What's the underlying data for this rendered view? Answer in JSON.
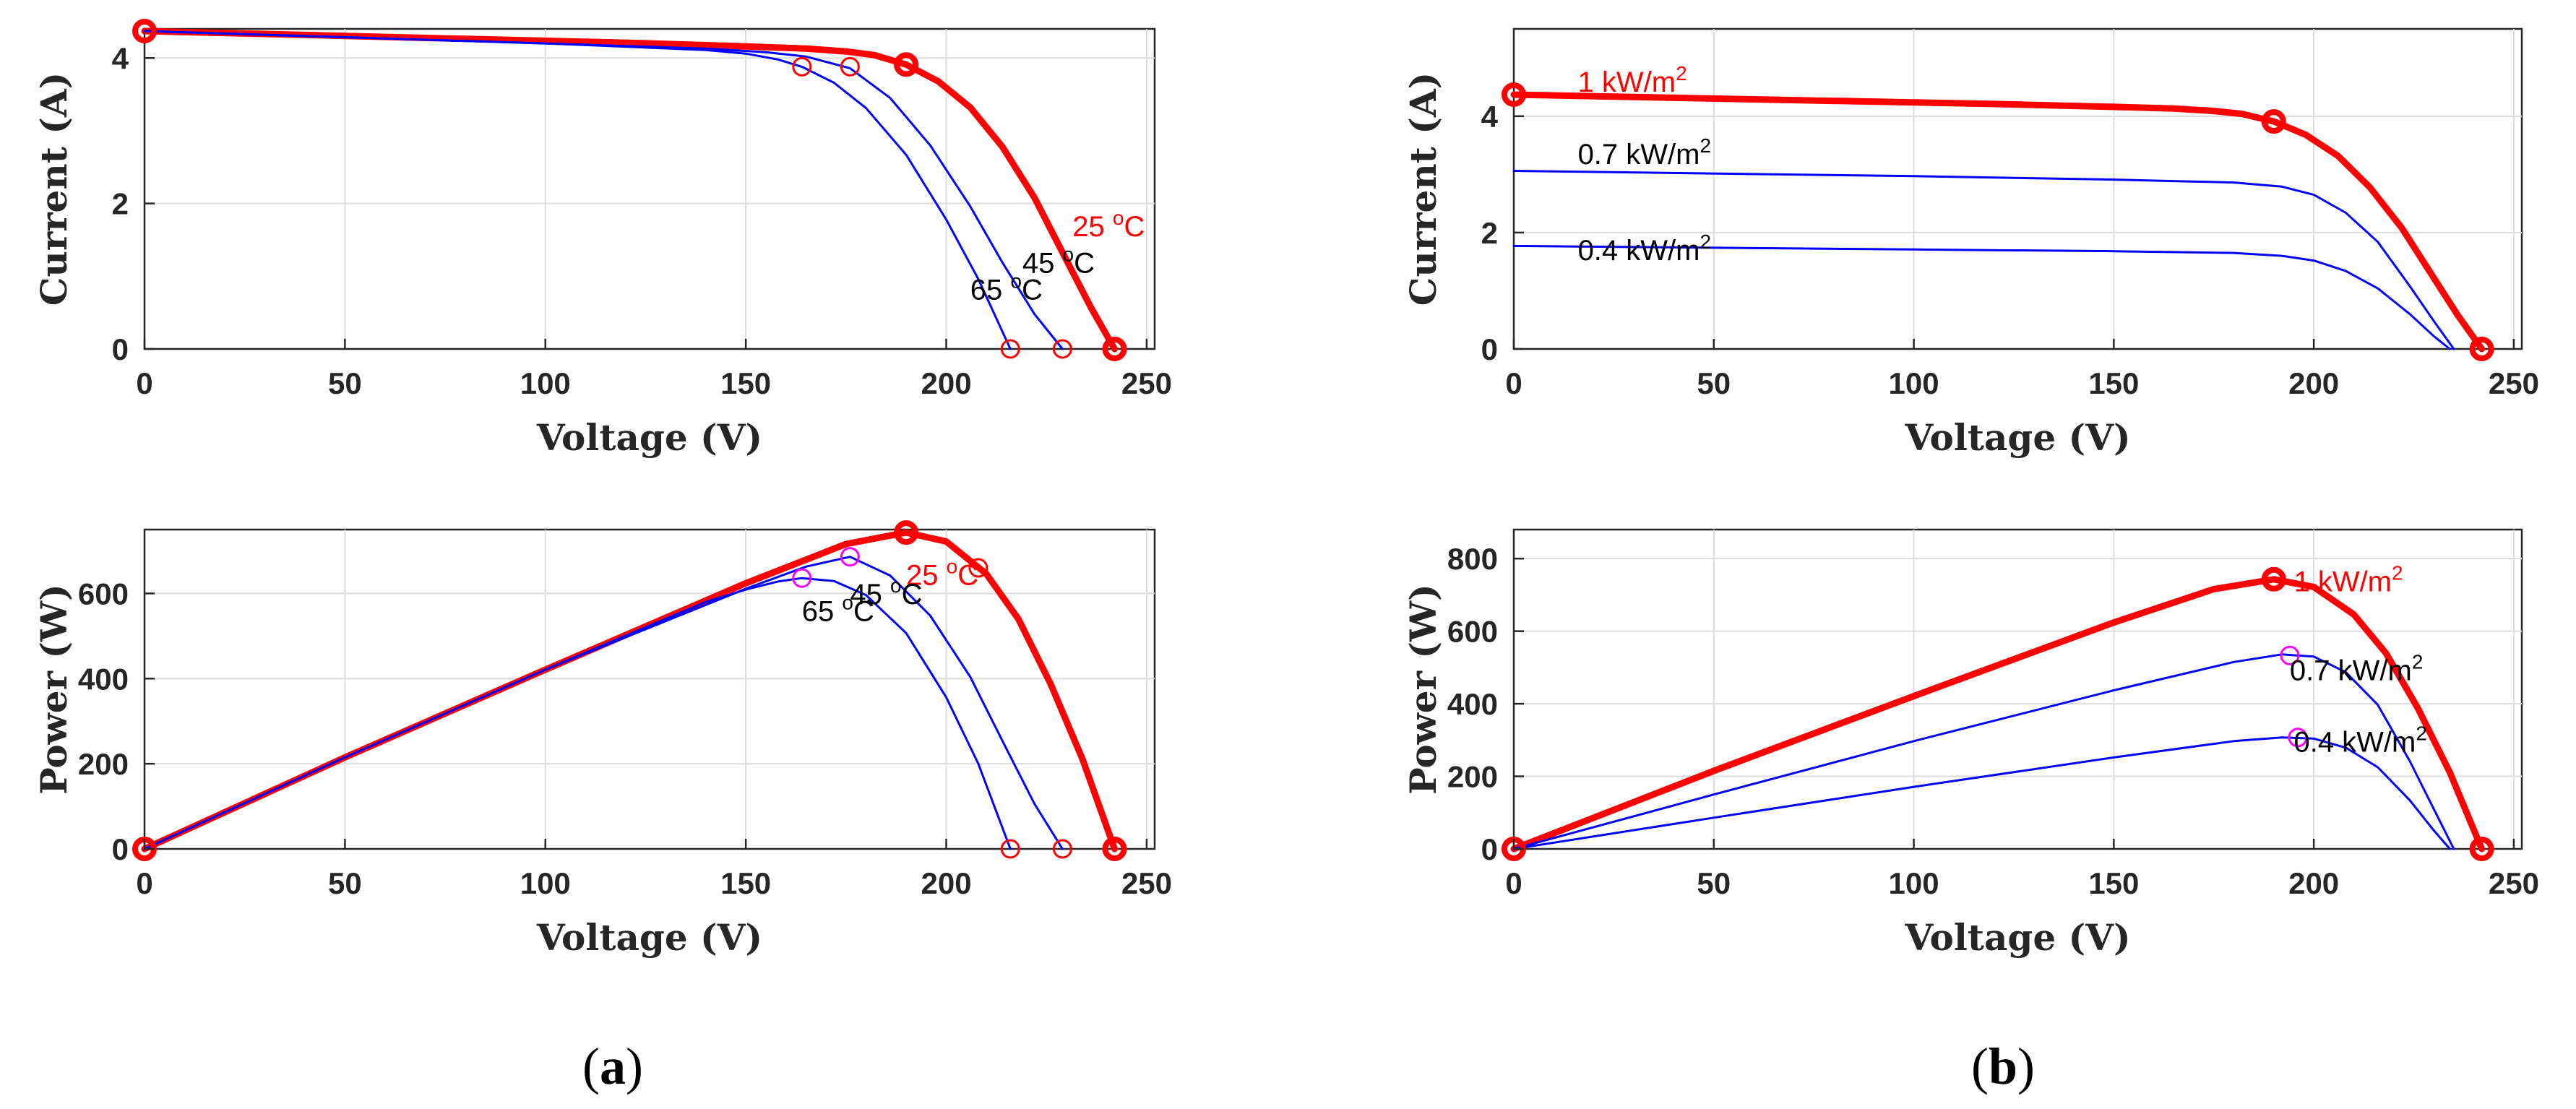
{
  "colors": {
    "thick": "#ff0000",
    "thin": "#0000ff",
    "mpp_magenta": "#ff00ff",
    "axis": "#262626",
    "grid": "#dcdcdc"
  },
  "panel_labels": {
    "a": "a",
    "b": "b"
  },
  "chart_data": [
    {
      "id": "a-iv",
      "type": "line",
      "panel": "a",
      "title": "",
      "xlabel": "Voltage (V)",
      "ylabel": "Current (A)",
      "xlim": [
        0,
        252
      ],
      "ylim": [
        0,
        4.4
      ],
      "xticks": [
        0,
        50,
        100,
        150,
        200,
        250
      ],
      "yticks": [
        0,
        2,
        4
      ],
      "grid": true,
      "series": [
        {
          "name": "25 °C",
          "label_main": "25 ",
          "label_sup": "o",
          "label_unit": "C",
          "color": "#ff0000",
          "width": 9,
          "label_color": "#ff0000",
          "label_at": [
            231.5,
            1.55
          ],
          "x": [
            0,
            60,
            120,
            150,
            165,
            175,
            182,
            190,
            198,
            206,
            214,
            222,
            230,
            236,
            242
          ],
          "y": [
            4.37,
            4.29,
            4.21,
            4.16,
            4.13,
            4.09,
            4.04,
            3.91,
            3.68,
            3.32,
            2.78,
            2.08,
            1.22,
            0.58,
            0.0
          ],
          "markers": [
            {
              "x": 0,
              "y": 4.37,
              "style": "bold"
            },
            {
              "x": 190,
              "y": 3.91,
              "style": "bold"
            },
            {
              "x": 242,
              "y": 0,
              "style": "bold"
            }
          ]
        },
        {
          "name": "45 °C",
          "label_main": "45 ",
          "label_sup": "o",
          "label_unit": "C",
          "color": "#0000ff",
          "width": 3,
          "label_color": "#000000",
          "label_at": [
            219,
            1.05
          ],
          "x": [
            0,
            100,
            140,
            155,
            165,
            176,
            186,
            196,
            206,
            214,
            222,
            229
          ],
          "y": [
            4.37,
            4.2,
            4.13,
            4.08,
            4.02,
            3.86,
            3.45,
            2.8,
            1.96,
            1.19,
            0.48,
            0.0
          ],
          "markers": [
            {
              "x": 176,
              "y": 3.88,
              "style": "thin"
            },
            {
              "x": 229,
              "y": 0,
              "style": "thin"
            }
          ]
        },
        {
          "name": "65 °C",
          "label_main": "65 ",
          "label_sup": "o",
          "label_unit": "C",
          "color": "#0000ff",
          "width": 3,
          "label_color": "#000000",
          "label_at": [
            206,
            0.68
          ],
          "x": [
            0,
            100,
            140,
            150,
            158,
            164,
            172,
            180,
            190,
            200,
            208,
            216
          ],
          "y": [
            4.37,
            4.2,
            4.11,
            4.06,
            3.98,
            3.88,
            3.66,
            3.31,
            2.67,
            1.78,
            0.96,
            0.0
          ],
          "markers": [
            {
              "x": 164,
              "y": 3.88,
              "style": "thin"
            },
            {
              "x": 216,
              "y": 0,
              "style": "thin"
            }
          ]
        }
      ]
    },
    {
      "id": "a-pv",
      "type": "line",
      "panel": "a",
      "title": "",
      "xlabel": "Voltage (V)",
      "ylabel": "Power (W)",
      "xlim": [
        0,
        252
      ],
      "ylim": [
        0,
        750
      ],
      "xticks": [
        0,
        50,
        100,
        150,
        200,
        250
      ],
      "yticks": [
        0,
        200,
        400,
        600
      ],
      "grid": true,
      "series": [
        {
          "name": "25 °C",
          "label_main": "25 ",
          "label_sup": "o",
          "label_unit": "C",
          "color": "#ff0000",
          "width": 9,
          "label_color": "#ff0000",
          "label_at": [
            190,
            620
          ],
          "x": [
            0,
            50,
            100,
            150,
            175,
            190,
            200,
            210,
            218,
            226,
            234,
            242
          ],
          "y": [
            0,
            215,
            421,
            624,
            716,
            743,
            722,
            646,
            540,
            388,
            211,
            0
          ],
          "markers": [
            {
              "x": 0,
              "y": 0,
              "style": "bold"
            },
            {
              "x": 190,
              "y": 743,
              "style": "bold"
            },
            {
              "x": 242,
              "y": 0,
              "style": "bold"
            },
            {
              "x": 208,
              "y": 660,
              "style": "thin"
            }
          ]
        },
        {
          "name": "45 °C",
          "label_main": "45 ",
          "label_sup": "o",
          "label_unit": "C",
          "color": "#0000ff",
          "width": 3,
          "label_color": "#000000",
          "label_at": [
            176,
            575
          ],
          "x": [
            0,
            50,
            100,
            150,
            165,
            176,
            186,
            196,
            206,
            214,
            222,
            229
          ],
          "y": [
            0,
            215,
            421,
            611,
            663,
            686,
            642,
            548,
            404,
            254,
            106,
            0
          ],
          "markers": [
            {
              "x": 176,
              "y": 686,
              "style": "magenta"
            },
            {
              "x": 229,
              "y": 0,
              "style": "thin"
            }
          ]
        },
        {
          "name": "65 °C",
          "label_main": "65 ",
          "label_sup": "o",
          "label_unit": "C",
          "color": "#0000ff",
          "width": 3,
          "label_color": "#000000",
          "label_at": [
            164,
            535
          ],
          "x": [
            0,
            50,
            100,
            140,
            150,
            158,
            164,
            172,
            180,
            190,
            200,
            208,
            216
          ],
          "y": [
            0,
            215,
            421,
            580,
            609,
            628,
            636,
            629,
            596,
            507,
            356,
            200,
            0
          ],
          "markers": [
            {
              "x": 164,
              "y": 636,
              "style": "magenta"
            },
            {
              "x": 216,
              "y": 0,
              "style": "thin"
            }
          ]
        }
      ]
    },
    {
      "id": "b-iv",
      "type": "line",
      "panel": "b",
      "title": "",
      "xlabel": "Voltage (V)",
      "ylabel": "Current (A)",
      "xlim": [
        0,
        252
      ],
      "ylim": [
        0,
        5.5
      ],
      "xticks": [
        0,
        50,
        100,
        150,
        200,
        250
      ],
      "yticks": [
        0,
        2,
        4
      ],
      "grid": true,
      "series": [
        {
          "name": "1 kW/m²",
          "label_main": "1 kW/m",
          "label_sup": "2",
          "label_unit": "",
          "color": "#ff0000",
          "width": 9,
          "label_color": "#ff0000",
          "label_at": [
            16,
            4.42
          ],
          "x": [
            0,
            60,
            120,
            150,
            165,
            175,
            182,
            190,
            198,
            206,
            214,
            222,
            230,
            236,
            242
          ],
          "y": [
            4.37,
            4.29,
            4.21,
            4.16,
            4.13,
            4.09,
            4.04,
            3.91,
            3.68,
            3.32,
            2.78,
            2.08,
            1.22,
            0.58,
            0.0
          ],
          "markers": [
            {
              "x": 0,
              "y": 4.37,
              "style": "bold"
            },
            {
              "x": 190,
              "y": 3.91,
              "style": "bold"
            },
            {
              "x": 242,
              "y": 0,
              "style": "bold"
            }
          ]
        },
        {
          "name": "0.7 kW/m²",
          "label_main": "0.7 kW/m",
          "label_sup": "2",
          "label_unit": "",
          "color": "#0000ff",
          "width": 3,
          "label_color": "#000000",
          "label_at": [
            16,
            3.18
          ],
          "x": [
            0,
            100,
            150,
            180,
            192,
            200,
            208,
            216,
            224,
            230,
            235
          ],
          "y": [
            3.06,
            2.97,
            2.91,
            2.86,
            2.79,
            2.65,
            2.34,
            1.84,
            1.08,
            0.48,
            0.0
          ],
          "markers": []
        },
        {
          "name": "0.4 kW/m²",
          "label_main": "0.4 kW/m",
          "label_sup": "2",
          "label_unit": "",
          "color": "#0000ff",
          "width": 3,
          "label_color": "#000000",
          "label_at": [
            16,
            1.53
          ],
          "x": [
            0,
            100,
            150,
            180,
            192,
            200,
            208,
            216,
            224,
            230,
            234
          ],
          "y": [
            1.77,
            1.71,
            1.68,
            1.65,
            1.6,
            1.52,
            1.34,
            1.04,
            0.6,
            0.22,
            0.0
          ],
          "markers": []
        }
      ]
    },
    {
      "id": "b-pv",
      "type": "line",
      "panel": "b",
      "title": "",
      "xlabel": "Voltage (V)",
      "ylabel": "Power (W)",
      "xlim": [
        0,
        252
      ],
      "ylim": [
        0,
        880
      ],
      "xticks": [
        0,
        50,
        100,
        150,
        200,
        250
      ],
      "yticks": [
        0,
        200,
        400,
        600,
        800
      ],
      "grid": true,
      "series": [
        {
          "name": "1 kW/m²",
          "label_main": "1 kW/m",
          "label_sup": "2",
          "label_unit": "",
          "color": "#ff0000",
          "width": 9,
          "label_color": "#ff0000",
          "label_at": [
            195,
            710
          ],
          "x": [
            0,
            50,
            100,
            150,
            175,
            190,
            200,
            210,
            218,
            226,
            234,
            242
          ],
          "y": [
            0,
            215,
            421,
            624,
            716,
            743,
            722,
            646,
            540,
            388,
            211,
            0
          ],
          "markers": [
            {
              "x": 0,
              "y": 0,
              "style": "bold"
            },
            {
              "x": 190,
              "y": 743,
              "style": "bold"
            },
            {
              "x": 242,
              "y": 0,
              "style": "bold"
            }
          ]
        },
        {
          "name": "0.7 kW/m²",
          "label_main": "0.7 kW/m",
          "label_sup": "2",
          "label_unit": "",
          "color": "#0000ff",
          "width": 3,
          "label_color": "#000000",
          "label_at": [
            194,
            465
          ],
          "x": [
            0,
            50,
            100,
            150,
            180,
            192,
            200,
            208,
            216,
            224,
            230,
            235
          ],
          "y": [
            0,
            150,
            297,
            437,
            515,
            536,
            530,
            487,
            397,
            242,
            110,
            0
          ],
          "markers": [
            {
              "x": 194,
              "y": 533,
              "style": "magenta"
            }
          ]
        },
        {
          "name": "0.4 kW/m²",
          "label_main": "0.4 kW/m",
          "label_sup": "2",
          "label_unit": "",
          "color": "#0000ff",
          "width": 3,
          "label_color": "#000000",
          "label_at": [
            195,
            268
          ],
          "x": [
            0,
            50,
            100,
            150,
            180,
            192,
            200,
            208,
            216,
            224,
            230,
            234
          ],
          "y": [
            0,
            86,
            171,
            252,
            297,
            307,
            304,
            279,
            225,
            134,
            51,
            0
          ],
          "markers": [
            {
              "x": 196,
              "y": 307,
              "style": "magenta"
            }
          ]
        }
      ]
    }
  ]
}
